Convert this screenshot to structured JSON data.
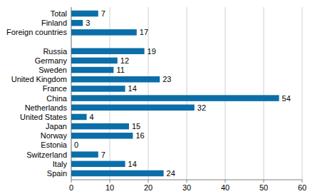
{
  "chart_data": {
    "type": "bar",
    "orientation": "horizontal",
    "categories": [
      "Total",
      "Finland",
      "Foreign countries",
      null,
      "Russia",
      "Germany",
      "Sweden",
      "United Kingdom",
      "France",
      "China",
      "Netherlands",
      "United States",
      "Japan",
      "Norway",
      "Estonia",
      "Switzerland",
      "Italy",
      "Spain"
    ],
    "values": [
      7,
      3,
      17,
      null,
      19,
      12,
      11,
      23,
      14,
      54,
      32,
      4,
      15,
      16,
      0,
      7,
      14,
      24
    ],
    "color": "#0b6ea8",
    "xlim": [
      0,
      60
    ],
    "xticks": [
      0,
      10,
      20,
      30,
      40,
      50,
      60
    ],
    "grid": true,
    "data_labels": true
  }
}
